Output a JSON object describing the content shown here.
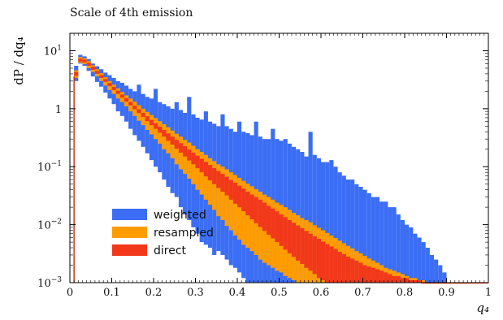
{
  "chart_data": {
    "type": "bar",
    "title": "Scale of 4th emission",
    "xlabel": "q₄",
    "ylabel": "dP / dq₄",
    "xlim": [
      0,
      1
    ],
    "ylim": [
      0.001,
      20
    ],
    "yscale": "log",
    "xticks": [
      "0",
      "0.1",
      "0.2",
      "0.3",
      "0.4",
      "0.5",
      "0.6",
      "0.7",
      "0.8",
      "0.9",
      "1"
    ],
    "yticks": [
      {
        "mantissa": "10",
        "exp": "1",
        "value": 10
      },
      {
        "mantissa": "1",
        "exp": "",
        "value": 1
      },
      {
        "mantissa": "10",
        "exp": "−1",
        "value": 0.1
      },
      {
        "mantissa": "10",
        "exp": "−2",
        "value": 0.01
      },
      {
        "mantissa": "10",
        "exp": "−3",
        "value": 0.001
      }
    ],
    "legend_position": "bottom-left",
    "series": [
      {
        "name": "weighted",
        "color": "#3b6ef5",
        "x": [
          0.015,
          0.025,
          0.035,
          0.045,
          0.055,
          0.065,
          0.075,
          0.085,
          0.095,
          0.105,
          0.115,
          0.125,
          0.135,
          0.145,
          0.155,
          0.165,
          0.175,
          0.185,
          0.195,
          0.205,
          0.215,
          0.225,
          0.235,
          0.245,
          0.255,
          0.265,
          0.275,
          0.285,
          0.295,
          0.305,
          0.315,
          0.325,
          0.335,
          0.345,
          0.355,
          0.365,
          0.375,
          0.385,
          0.395,
          0.405,
          0.415,
          0.425,
          0.435,
          0.445,
          0.455,
          0.465,
          0.475,
          0.485,
          0.495,
          0.505,
          0.515,
          0.525,
          0.535,
          0.545,
          0.555,
          0.565,
          0.575,
          0.585,
          0.595,
          0.605,
          0.615,
          0.625,
          0.635,
          0.645,
          0.655,
          0.665,
          0.675,
          0.685,
          0.695,
          0.705,
          0.715,
          0.725,
          0.735,
          0.745,
          0.755,
          0.765,
          0.775,
          0.785,
          0.795,
          0.805,
          0.815,
          0.825,
          0.835,
          0.845,
          0.855,
          0.865,
          0.875,
          0.885,
          0.895
        ],
        "low": [
          3.0,
          6.0,
          5.5,
          4.5,
          3.6,
          2.9,
          2.4,
          1.9,
          1.5,
          1.2,
          0.9,
          0.75,
          0.6,
          0.45,
          0.35,
          0.28,
          0.22,
          0.17,
          0.13,
          0.1,
          0.08,
          0.06,
          0.045,
          0.035,
          0.03,
          0.02,
          0.015,
          0.012,
          0.009,
          0.007,
          0.005,
          0.0045,
          0.004,
          0.003,
          0.0035,
          0.003,
          0.0025,
          0.002,
          0.0018,
          0.0015,
          0.0012,
          0.001,
          0.001,
          0.001,
          0.001,
          0.001,
          0.001,
          0.001,
          0.001,
          0.001,
          0.001,
          0.001,
          0.001,
          0.001,
          0.001,
          0.001,
          0.001,
          0.001,
          0.001,
          0.001,
          0.001,
          0.001,
          0.001,
          0.001,
          0.001,
          0.001,
          0.001,
          0.001,
          0.001,
          0.001,
          0.001,
          0.001,
          0.001,
          0.001,
          0.001,
          0.001,
          0.001,
          0.001,
          0.001,
          0.001,
          0.001,
          0.001,
          0.001,
          0.001,
          0.001,
          0.001,
          0.001,
          0.001,
          0.001
        ],
        "high": [
          5.5,
          8.5,
          8.0,
          7.2,
          6.0,
          5.4,
          4.8,
          4.2,
          3.8,
          3.4,
          3.0,
          2.8,
          2.5,
          2.2,
          2.0,
          2.6,
          1.8,
          1.6,
          1.5,
          2.2,
          1.3,
          1.2,
          1.1,
          1.0,
          1.3,
          0.95,
          0.85,
          1.6,
          0.8,
          0.7,
          0.65,
          0.9,
          0.6,
          0.55,
          0.5,
          0.8,
          0.5,
          0.45,
          0.4,
          0.6,
          0.4,
          0.38,
          0.35,
          0.6,
          0.33,
          0.3,
          0.3,
          0.45,
          0.3,
          0.28,
          0.3,
          0.25,
          0.22,
          0.2,
          0.18,
          0.15,
          0.4,
          0.16,
          0.14,
          0.12,
          0.12,
          0.13,
          0.1,
          0.08,
          0.07,
          0.06,
          0.06,
          0.05,
          0.045,
          0.04,
          0.035,
          0.03,
          0.03,
          0.025,
          0.025,
          0.02,
          0.02,
          0.015,
          0.012,
          0.01,
          0.009,
          0.007,
          0.006,
          0.005,
          0.004,
          0.003,
          0.0025,
          0.002,
          0.0015
        ]
      },
      {
        "name": "resampled",
        "color": "#ff9c00",
        "x": [
          0.015,
          0.025,
          0.035,
          0.045,
          0.055,
          0.065,
          0.075,
          0.085,
          0.095,
          0.105,
          0.115,
          0.125,
          0.135,
          0.145,
          0.155,
          0.165,
          0.175,
          0.185,
          0.195,
          0.205,
          0.215,
          0.225,
          0.235,
          0.245,
          0.255,
          0.265,
          0.275,
          0.285,
          0.295,
          0.305,
          0.315,
          0.325,
          0.335,
          0.345,
          0.355,
          0.365,
          0.375,
          0.385,
          0.395,
          0.405,
          0.415,
          0.425,
          0.435,
          0.445,
          0.455,
          0.465,
          0.475,
          0.485,
          0.495,
          0.505,
          0.515,
          0.525,
          0.535,
          0.545,
          0.555,
          0.565,
          0.575,
          0.585,
          0.595,
          0.605,
          0.615,
          0.625,
          0.635,
          0.645,
          0.655,
          0.665,
          0.675,
          0.685,
          0.695,
          0.705,
          0.715,
          0.725,
          0.735,
          0.745,
          0.755,
          0.765,
          0.775,
          0.785,
          0.795,
          0.805,
          0.815,
          0.825,
          0.835,
          0.845,
          0.855,
          0.865,
          0.875,
          0.885,
          0.895,
          0.905,
          0.915,
          0.925,
          0.935,
          0.945
        ],
        "low": [
          3.4,
          6.2,
          5.9,
          5.0,
          4.3,
          3.6,
          3.0,
          2.5,
          2.1,
          1.8,
          1.5,
          1.3,
          1.1,
          0.9,
          0.75,
          0.62,
          0.52,
          0.43,
          0.36,
          0.3,
          0.25,
          0.2,
          0.17,
          0.14,
          0.11,
          0.09,
          0.075,
          0.062,
          0.05,
          0.04,
          0.033,
          0.027,
          0.022,
          0.018,
          0.014,
          0.012,
          0.0095,
          0.008,
          0.0065,
          0.0055,
          0.0045,
          0.004,
          0.0035,
          0.003,
          0.0025,
          0.0022,
          0.002,
          0.0018,
          0.0016,
          0.0015,
          0.0013,
          0.0012,
          0.0011,
          0.001,
          0.001,
          0.001,
          0.001,
          0.001,
          0.001,
          0.001,
          0.001,
          0.001,
          0.001,
          0.001,
          0.001,
          0.001,
          0.001,
          0.001,
          0.001,
          0.001,
          0.001,
          0.001,
          0.001,
          0.001,
          0.001,
          0.001,
          0.001,
          0.001,
          0.001,
          0.001,
          0.001,
          0.001,
          0.001,
          0.001,
          0.001,
          0.001,
          0.001,
          0.001,
          0.001,
          0.001,
          0.001,
          0.001,
          0.001,
          0.001
        ],
        "high": [
          4.6,
          7.8,
          7.4,
          6.6,
          5.6,
          4.8,
          4.1,
          3.5,
          3.0,
          2.6,
          2.25,
          1.95,
          1.7,
          1.5,
          1.32,
          1.15,
          1.0,
          0.88,
          0.78,
          0.69,
          0.61,
          0.54,
          0.48,
          0.42,
          0.37,
          0.33,
          0.29,
          0.26,
          0.23,
          0.2,
          0.18,
          0.16,
          0.14,
          0.125,
          0.11,
          0.1,
          0.09,
          0.08,
          0.072,
          0.064,
          0.057,
          0.051,
          0.046,
          0.041,
          0.037,
          0.033,
          0.03,
          0.027,
          0.024,
          0.022,
          0.02,
          0.018,
          0.016,
          0.0145,
          0.013,
          0.012,
          0.011,
          0.0098,
          0.0088,
          0.008,
          0.0072,
          0.0065,
          0.0059,
          0.0053,
          0.0048,
          0.0043,
          0.0039,
          0.0035,
          0.0032,
          0.0029,
          0.0026,
          0.0024,
          0.0022,
          0.002,
          0.0018,
          0.0017,
          0.0016,
          0.0015,
          0.0014,
          0.0013,
          0.0012,
          0.0012,
          0.0011,
          0.0011,
          0.001,
          0.001,
          0.001,
          0.001,
          0.001,
          0.001,
          0.001,
          0.001,
          0.001,
          0.001
        ]
      },
      {
        "name": "direct",
        "color": "#f2381b",
        "x": [
          0.015,
          0.025,
          0.035,
          0.045,
          0.055,
          0.065,
          0.075,
          0.085,
          0.095,
          0.105,
          0.115,
          0.125,
          0.135,
          0.145,
          0.155,
          0.165,
          0.175,
          0.185,
          0.195,
          0.205,
          0.215,
          0.225,
          0.235,
          0.245,
          0.255,
          0.265,
          0.275,
          0.285,
          0.295,
          0.305,
          0.315,
          0.325,
          0.335,
          0.345,
          0.355,
          0.365,
          0.375,
          0.385,
          0.395,
          0.405,
          0.415,
          0.425,
          0.435,
          0.445,
          0.455,
          0.465,
          0.475,
          0.485,
          0.495,
          0.505,
          0.515,
          0.525,
          0.535,
          0.545,
          0.555,
          0.565,
          0.575,
          0.585,
          0.595,
          0.605,
          0.615,
          0.625,
          0.635,
          0.645,
          0.655,
          0.665,
          0.675,
          0.685,
          0.695,
          0.705,
          0.715,
          0.725,
          0.735,
          0.745,
          0.755,
          0.765,
          0.775,
          0.785,
          0.795,
          0.805,
          0.815,
          0.825,
          0.835,
          0.845,
          0.855,
          0.865,
          0.875,
          0.885,
          0.895,
          0.905,
          0.915,
          0.925,
          0.935,
          0.945,
          0.955,
          0.965,
          0.975,
          0.985,
          0.995
        ],
        "low": [
          3.7,
          6.5,
          6.3,
          5.5,
          4.7,
          4.0,
          3.4,
          2.9,
          2.45,
          2.1,
          1.8,
          1.55,
          1.33,
          1.14,
          0.98,
          0.84,
          0.72,
          0.61,
          0.52,
          0.45,
          0.385,
          0.33,
          0.28,
          0.24,
          0.205,
          0.175,
          0.15,
          0.128,
          0.11,
          0.094,
          0.08,
          0.068,
          0.058,
          0.05,
          0.043,
          0.037,
          0.032,
          0.027,
          0.023,
          0.02,
          0.017,
          0.0145,
          0.0124,
          0.0106,
          0.0091,
          0.0078,
          0.0067,
          0.0058,
          0.005,
          0.0043,
          0.0037,
          0.0032,
          0.0028,
          0.0024,
          0.0021,
          0.0018,
          0.0016,
          0.0014,
          0.0012,
          0.0011,
          0.001,
          0.001,
          0.001,
          0.001,
          0.001,
          0.001,
          0.001,
          0.001,
          0.001,
          0.001,
          0.001,
          0.001,
          0.001,
          0.001,
          0.001,
          0.001,
          0.001,
          0.001,
          0.001,
          0.001,
          0.001,
          0.001,
          0.001,
          0.001,
          0.001,
          0.001,
          0.001,
          0.001,
          0.001,
          0.001,
          0.001,
          0.001,
          0.001,
          0.001,
          0.001,
          0.001,
          0.001,
          0.001,
          0.001
        ],
        "high": [
          4.3,
          7.3,
          7.0,
          6.2,
          5.3,
          4.5,
          3.8,
          3.25,
          2.78,
          2.38,
          2.05,
          1.76,
          1.52,
          1.31,
          1.13,
          0.98,
          0.85,
          0.74,
          0.64,
          0.56,
          0.49,
          0.43,
          0.375,
          0.33,
          0.29,
          0.255,
          0.225,
          0.198,
          0.175,
          0.155,
          0.137,
          0.121,
          0.107,
          0.095,
          0.084,
          0.075,
          0.067,
          0.059,
          0.053,
          0.047,
          0.042,
          0.037,
          0.033,
          0.03,
          0.027,
          0.024,
          0.021,
          0.019,
          0.017,
          0.015,
          0.0135,
          0.012,
          0.0108,
          0.0097,
          0.0087,
          0.0078,
          0.007,
          0.0063,
          0.0057,
          0.0051,
          0.0046,
          0.0042,
          0.0038,
          0.0034,
          0.0031,
          0.0028,
          0.0026,
          0.0024,
          0.0022,
          0.002,
          0.0019,
          0.0018,
          0.0017,
          0.0016,
          0.0015,
          0.0014,
          0.0013,
          0.0013,
          0.0012,
          0.0012,
          0.0011,
          0.0011,
          0.0011,
          0.001,
          0.001,
          0.001,
          0.001,
          0.001,
          0.001,
          0.001,
          0.001,
          0.001,
          0.001,
          0.001,
          0.001,
          0.001,
          0.001,
          0.001,
          0.001
        ]
      }
    ]
  }
}
